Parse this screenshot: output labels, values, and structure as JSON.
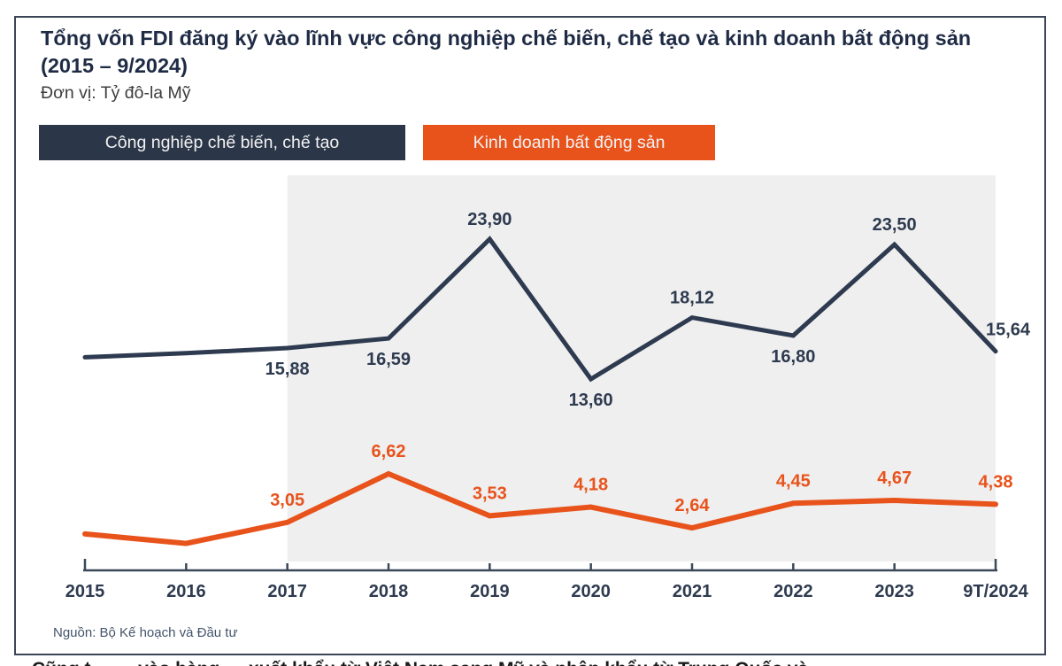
{
  "card": {
    "title": "Tổng vốn FDI đăng ký vào lĩnh vực công nghiệp chế biến, chế tạo và kinh doanh bất động sản (2015 – 9/2024)",
    "unit_label": "Đơn vị: Tỷ đô-la Mỹ",
    "source": "Nguồn: Bộ Kế hoạch và Đầu tư"
  },
  "legend": [
    {
      "label": "Công nghiệp chế biến, chế tạo",
      "color": "#2b3648",
      "text_color": "#f2f2f2"
    },
    {
      "label": "Kinh doanh bất động sản",
      "color": "#e8531c",
      "text_color": "#f2f2f2"
    }
  ],
  "colors": {
    "manufacturing_line": "#2e3a4f",
    "real_estate_line": "#e8531c",
    "highlight_band": "#efefef",
    "axis": "#3b4859",
    "title_text": "#1f2b45",
    "card_border": "#3a4557"
  },
  "chart_data": {
    "type": "line",
    "title": "Tổng vốn FDI đăng ký vào lĩnh vực công nghiệp chế biến, chế tạo và kinh doanh bất động sản (2015 – 9/2024)",
    "unit": "Tỷ đô-la Mỹ",
    "categories": [
      "2015",
      "2016",
      "2017",
      "2018",
      "2019",
      "2020",
      "2021",
      "2022",
      "2023",
      "9T/2024"
    ],
    "ylim": [
      0,
      26
    ],
    "grid": false,
    "legend_position": "top",
    "highlight_band": {
      "from": "2017",
      "to": "9T/2024"
    },
    "series": [
      {
        "name": "Công nghiệp chế biến, chế tạo",
        "color": "#2e3a4f",
        "stroke_width": 5,
        "values": [
          15.2,
          15.5,
          15.88,
          16.59,
          23.9,
          13.6,
          18.12,
          16.8,
          23.5,
          15.64
        ],
        "labels": [
          "",
          "",
          "15,88",
          "16,59",
          "23,90",
          "13,60",
          "18,12",
          "16,80",
          "23,50",
          "15,64"
        ],
        "label_pos": [
          "none",
          "none",
          "below",
          "below",
          "above",
          "below",
          "above",
          "below",
          "above",
          "above-right"
        ]
      },
      {
        "name": "Kinh doanh bất động sản",
        "color": "#e8531c",
        "stroke_width": 6,
        "values": [
          2.2,
          1.5,
          3.05,
          6.62,
          3.53,
          4.18,
          2.64,
          4.45,
          4.67,
          4.38
        ],
        "labels": [
          "",
          "",
          "3,05",
          "6,62",
          "3,53",
          "4,18",
          "2,64",
          "4,45",
          "4,67",
          "4,38"
        ],
        "label_pos": [
          "none",
          "none",
          "above",
          "above",
          "above",
          "above",
          "above",
          "above",
          "above",
          "above"
        ]
      }
    ]
  },
  "footer_fragment": "Cũng t… … vào hàng … xuất khẩu từ Việt Nam sang Mỹ và nhập khẩu từ Trung Quốc và …"
}
